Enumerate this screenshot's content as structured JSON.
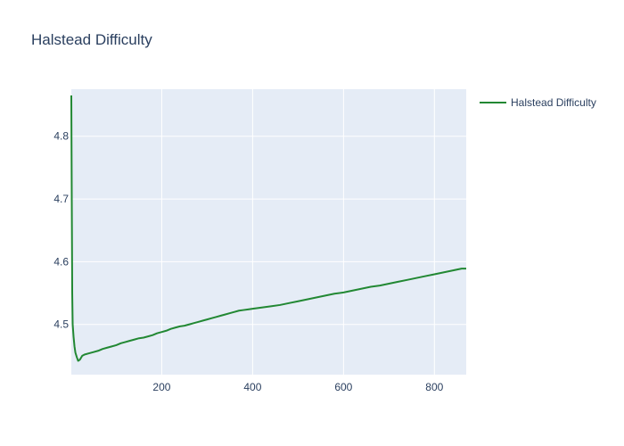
{
  "chart_data": {
    "type": "line",
    "title": "Halstead Difficulty",
    "xlabel": "",
    "ylabel": "",
    "xlim": [
      1,
      870
    ],
    "ylim": [
      4.42,
      4.875
    ],
    "x_ticks": [
      200,
      400,
      600,
      800
    ],
    "y_ticks": [
      4.5,
      4.6,
      4.7,
      4.8
    ],
    "grid": true,
    "legend_position": "top-right",
    "series": [
      {
        "name": "Halstead Difficulty",
        "color": "#228833",
        "x": [
          1,
          2,
          3,
          4,
          6,
          8,
          10,
          13,
          16,
          20,
          25,
          30,
          40,
          50,
          60,
          70,
          80,
          90,
          100,
          110,
          120,
          130,
          140,
          150,
          160,
          170,
          180,
          190,
          200,
          210,
          220,
          230,
          240,
          250,
          260,
          270,
          280,
          290,
          300,
          310,
          320,
          330,
          340,
          350,
          360,
          370,
          380,
          390,
          400,
          420,
          440,
          460,
          480,
          500,
          520,
          540,
          560,
          580,
          600,
          620,
          640,
          660,
          680,
          700,
          720,
          740,
          760,
          780,
          800,
          820,
          840,
          860,
          870
        ],
        "y": [
          4.865,
          4.7,
          4.55,
          4.5,
          4.48,
          4.465,
          4.455,
          4.448,
          4.442,
          4.444,
          4.45,
          4.452,
          4.454,
          4.456,
          4.458,
          4.461,
          4.463,
          4.465,
          4.467,
          4.47,
          4.472,
          4.474,
          4.476,
          4.478,
          4.479,
          4.481,
          4.483,
          4.486,
          4.488,
          4.49,
          4.493,
          4.495,
          4.497,
          4.498,
          4.5,
          4.502,
          4.504,
          4.506,
          4.508,
          4.51,
          4.512,
          4.514,
          4.516,
          4.518,
          4.52,
          4.522,
          4.523,
          4.524,
          4.525,
          4.527,
          4.529,
          4.531,
          4.534,
          4.537,
          4.54,
          4.543,
          4.546,
          4.549,
          4.551,
          4.554,
          4.557,
          4.56,
          4.562,
          4.565,
          4.568,
          4.571,
          4.574,
          4.577,
          4.58,
          4.583,
          4.586,
          4.589,
          4.589
        ]
      }
    ]
  }
}
